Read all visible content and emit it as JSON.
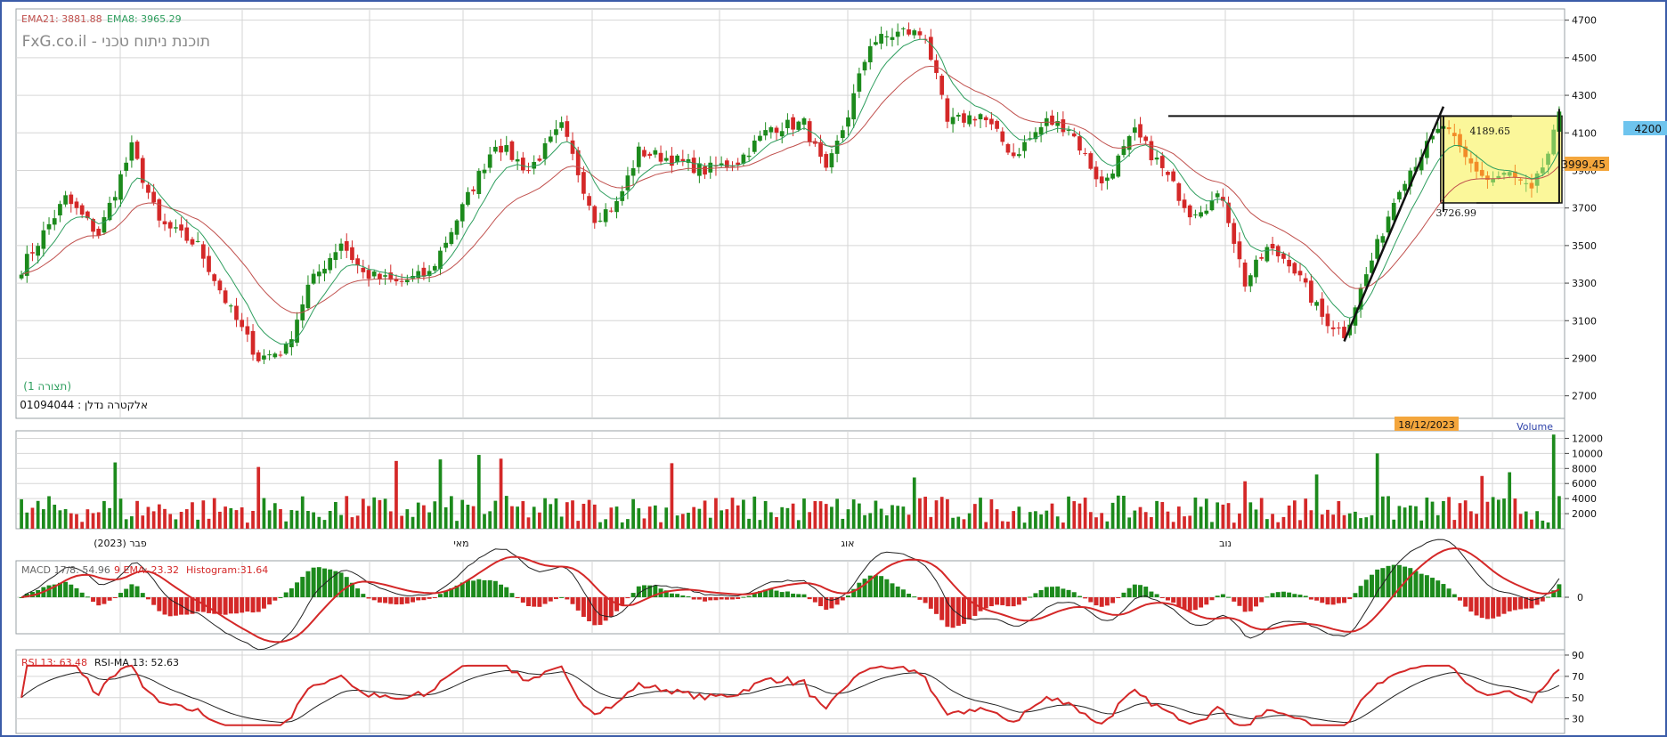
{
  "header": {
    "ema21_label": "EMA21: 3881.88",
    "ema8_label": "EMA8: 3965.29",
    "watermark": "FxG.co.il - תוכנת ניתוח טכני",
    "view_label": "(תצורה 1)",
    "symbol_label": "אלקטרה נדלן : 01094044"
  },
  "colors": {
    "up": "#1c8a1c",
    "down": "#d42828",
    "ema21": "#c0504d",
    "ema8": "#2e9e5e",
    "frame": "#3b5ca8",
    "grid": "#d6d6d6",
    "highlight": "#fbf79a",
    "box_candle": "#f28c28",
    "price_tag_blue": "#6ec4ee",
    "price_tag_orange": "#f4a63c"
  },
  "chart_data": [
    {
      "type": "candlestick",
      "name": "price",
      "y_ticks": [
        2700,
        2900,
        3100,
        3300,
        3500,
        3700,
        3900,
        4100,
        4300,
        4500,
        4700
      ],
      "ylim": [
        2580,
        4760
      ],
      "x_ticks": [
        "(2023) פבר",
        "מאי",
        "אוג",
        "נוב"
      ],
      "anchors": [
        {
          "i": 0,
          "v": 3380
        },
        {
          "i": 8,
          "v": 3750
        },
        {
          "i": 14,
          "v": 3560
        },
        {
          "i": 20,
          "v": 4020
        },
        {
          "i": 25,
          "v": 3620
        },
        {
          "i": 32,
          "v": 3500
        },
        {
          "i": 38,
          "v": 3150
        },
        {
          "i": 43,
          "v": 2900
        },
        {
          "i": 48,
          "v": 2950
        },
        {
          "i": 52,
          "v": 3280
        },
        {
          "i": 58,
          "v": 3520
        },
        {
          "i": 62,
          "v": 3350
        },
        {
          "i": 68,
          "v": 3300
        },
        {
          "i": 74,
          "v": 3350
        },
        {
          "i": 80,
          "v": 3700
        },
        {
          "i": 86,
          "v": 4050
        },
        {
          "i": 92,
          "v": 3900
        },
        {
          "i": 98,
          "v": 4130
        },
        {
          "i": 104,
          "v": 3650
        },
        {
          "i": 108,
          "v": 3720
        },
        {
          "i": 112,
          "v": 4000
        },
        {
          "i": 118,
          "v": 3960
        },
        {
          "i": 124,
          "v": 3900
        },
        {
          "i": 130,
          "v": 3950
        },
        {
          "i": 136,
          "v": 4130
        },
        {
          "i": 142,
          "v": 4150
        },
        {
          "i": 146,
          "v": 3880
        },
        {
          "i": 150,
          "v": 4200
        },
        {
          "i": 154,
          "v": 4580
        },
        {
          "i": 160,
          "v": 4640
        },
        {
          "i": 164,
          "v": 4620
        },
        {
          "i": 168,
          "v": 4150
        },
        {
          "i": 174,
          "v": 4200
        },
        {
          "i": 180,
          "v": 3980
        },
        {
          "i": 186,
          "v": 4160
        },
        {
          "i": 190,
          "v": 4130
        },
        {
          "i": 196,
          "v": 3820
        },
        {
          "i": 202,
          "v": 4100
        },
        {
          "i": 206,
          "v": 3950
        },
        {
          "i": 212,
          "v": 3680
        },
        {
          "i": 218,
          "v": 3760
        },
        {
          "i": 222,
          "v": 3300
        },
        {
          "i": 226,
          "v": 3480
        },
        {
          "i": 230,
          "v": 3420
        },
        {
          "i": 236,
          "v": 3120
        },
        {
          "i": 240,
          "v": 3030
        },
        {
          "i": 246,
          "v": 3500
        },
        {
          "i": 250,
          "v": 3820
        },
        {
          "i": 254,
          "v": 3990
        },
        {
          "i": 258,
          "v": 4140
        },
        {
          "i": 262,
          "v": 3960
        },
        {
          "i": 266,
          "v": 3850
        },
        {
          "i": 270,
          "v": 3880
        },
        {
          "i": 274,
          "v": 3780
        },
        {
          "i": 277,
          "v": 3990
        },
        {
          "i": 279,
          "v": 4180
        }
      ],
      "count": 280,
      "box": {
        "start": 258,
        "end": 279,
        "top": 4189.65,
        "bottom": 3726.99
      },
      "box_top_label": "4189.65",
      "box_bottom_label": "3726.99",
      "resistance_line_value": 4189.65,
      "trend_line": {
        "from": [
          240,
          2990
        ],
        "to": [
          258,
          4240
        ]
      },
      "last_price_label": "4200",
      "prev_price_label": "3999.45",
      "last_price": 4200,
      "prev_price": 3999.45
    },
    {
      "type": "bar",
      "name": "volume",
      "title": "Volume",
      "y_ticks": [
        2000,
        4000,
        6000,
        8000,
        10000,
        12000
      ],
      "ylim": [
        0,
        13000
      ],
      "date_label": "18/12/2023",
      "spikes": [
        {
          "i": 17,
          "v": 8800
        },
        {
          "i": 43,
          "v": 8200
        },
        {
          "i": 68,
          "v": 9000
        },
        {
          "i": 76,
          "v": 9200
        },
        {
          "i": 83,
          "v": 9800
        },
        {
          "i": 87,
          "v": 9300
        },
        {
          "i": 118,
          "v": 8700
        },
        {
          "i": 162,
          "v": 6800
        },
        {
          "i": 222,
          "v": 6300
        },
        {
          "i": 235,
          "v": 7200
        },
        {
          "i": 246,
          "v": 10000
        },
        {
          "i": 278,
          "v": 12500
        },
        {
          "i": 270,
          "v": 7500
        },
        {
          "i": 265,
          "v": 7000
        }
      ]
    },
    {
      "type": "line",
      "name": "macd",
      "label": "MACD 17/8: 54.96",
      "ema_label": "9 EMA: 23.32",
      "hist_label": "Histogram:31.64",
      "y_ticks": [
        0
      ],
      "ylim": [
        -120,
        120
      ]
    },
    {
      "type": "line",
      "name": "rsi",
      "label": "RSI 13: 63.48",
      "ma_label": "RSI-MA 13: 52.63",
      "y_ticks": [
        30,
        50,
        70,
        90
      ],
      "ylim": [
        18,
        95
      ]
    }
  ]
}
